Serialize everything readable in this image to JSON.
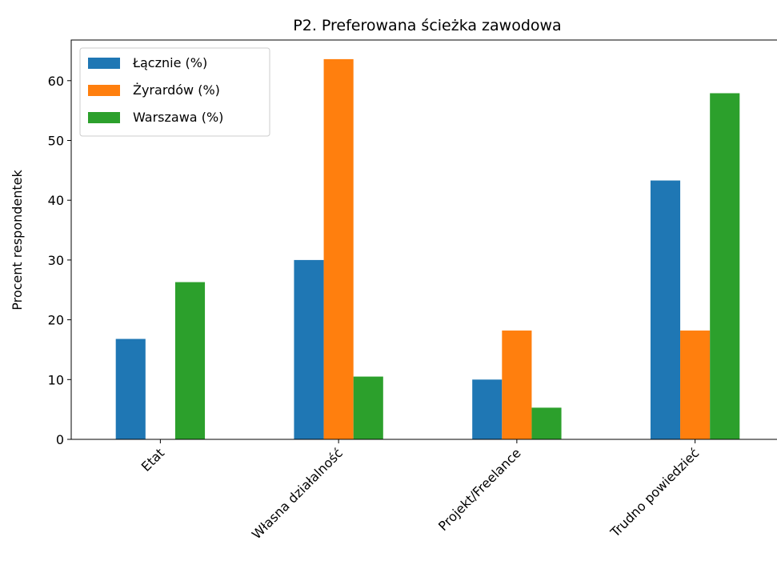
{
  "chart_data": {
    "type": "bar",
    "title": "P2. Preferowana ścieżka zawodowa",
    "ylabel": "Procent respondentek",
    "categories": [
      "Etat",
      "Własna działalność",
      "Projekt/Freelance",
      "Trudno powiedzieć"
    ],
    "series": [
      {
        "name": "Łącznie (%)",
        "color": "#1f77b4",
        "values": [
          16.8,
          30.0,
          10.0,
          43.3
        ]
      },
      {
        "name": "Żyrardów (%)",
        "color": "#ff7f0e",
        "values": [
          0,
          63.6,
          18.2,
          18.2
        ]
      },
      {
        "name": "Warszawa (%)",
        "color": "#2ca02c",
        "values": [
          26.3,
          10.5,
          5.3,
          57.9
        ]
      }
    ],
    "ylim": [
      0,
      66.8
    ],
    "yticks": [
      0,
      10,
      20,
      30,
      40,
      50,
      60
    ],
    "legend": "upper left"
  }
}
